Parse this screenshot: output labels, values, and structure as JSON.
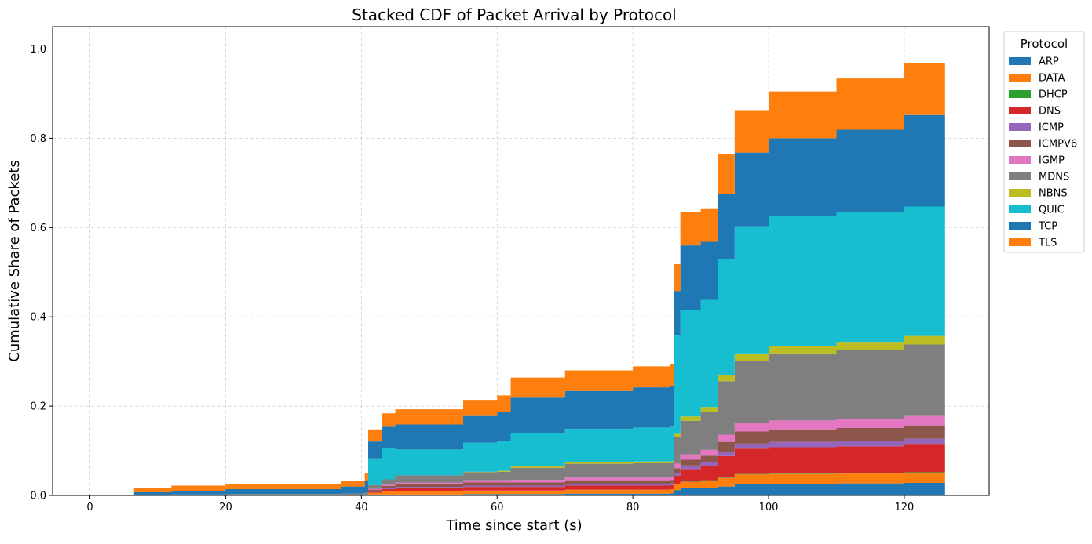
{
  "chart_data": {
    "type": "area",
    "stacked": true,
    "title": "Stacked CDF of Packet Arrival by Protocol",
    "xlabel": "Time since start (s)",
    "ylabel": "Cumulative Share of Packets",
    "xlim": [
      -5.5,
      132.5
    ],
    "ylim": [
      0.0,
      1.05
    ],
    "xticks": [
      0,
      20,
      40,
      60,
      80,
      100,
      120
    ],
    "yticks": [
      0.0,
      0.2,
      0.4,
      0.6,
      0.8,
      1.0
    ],
    "xtick_labels": [
      "0",
      "20",
      "40",
      "60",
      "80",
      "100",
      "120"
    ],
    "ytick_labels": [
      "0.0",
      "0.2",
      "0.4",
      "0.6",
      "0.8",
      "1.0"
    ],
    "grid": true,
    "legend": {
      "title": "Protocol",
      "placement": "outside-top-right"
    },
    "x": [
      0,
      6.5,
      12,
      20,
      37,
      40.5,
      41,
      43,
      45,
      55,
      60,
      62,
      70,
      80,
      85.5,
      86,
      87,
      90,
      92.5,
      95,
      100,
      110,
      120,
      126
    ],
    "series": [
      {
        "name": "ARP",
        "color": "#1f77b4",
        "values": [
          0,
          0,
          0,
          0,
          0,
          0.001,
          0.002,
          0.002,
          0.002,
          0.003,
          0.003,
          0.003,
          0.004,
          0.004,
          0.005,
          0.012,
          0.016,
          0.017,
          0.02,
          0.025,
          0.026,
          0.027,
          0.028,
          0.029
        ]
      },
      {
        "name": "DATA",
        "color": "#ff7f0e",
        "values": [
          0,
          0,
          0,
          0,
          0,
          0.001,
          0.004,
          0.007,
          0.007,
          0.008,
          0.008,
          0.008,
          0.009,
          0.009,
          0.009,
          0.013,
          0.014,
          0.016,
          0.019,
          0.022,
          0.022,
          0.022,
          0.022,
          0.023
        ]
      },
      {
        "name": "DHCP",
        "color": "#2ca02c",
        "values": [
          0,
          0,
          0,
          0,
          0,
          0,
          0,
          0,
          0,
          0,
          0,
          0,
          0,
          0,
          0,
          0.001,
          0.001,
          0.001,
          0.001,
          0.001,
          0.001,
          0.001,
          0.002,
          0.002
        ]
      },
      {
        "name": "DNS",
        "color": "#d62728",
        "values": [
          0,
          0,
          0,
          0,
          0,
          0,
          0.002,
          0.005,
          0.007,
          0.008,
          0.008,
          0.008,
          0.009,
          0.009,
          0.009,
          0.018,
          0.028,
          0.031,
          0.048,
          0.057,
          0.059,
          0.06,
          0.062,
          0.063
        ]
      },
      {
        "name": "ICMP",
        "color": "#9467bd",
        "values": [
          0,
          0,
          0,
          0,
          0,
          0,
          0.002,
          0.003,
          0.003,
          0.003,
          0.003,
          0.003,
          0.004,
          0.004,
          0.004,
          0.007,
          0.008,
          0.009,
          0.01,
          0.011,
          0.012,
          0.012,
          0.013,
          0.013
        ]
      },
      {
        "name": "ICMPV6",
        "color": "#8c564b",
        "values": [
          0,
          0,
          0,
          0,
          0,
          0,
          0.003,
          0.004,
          0.006,
          0.007,
          0.007,
          0.007,
          0.008,
          0.008,
          0.008,
          0.01,
          0.013,
          0.015,
          0.022,
          0.027,
          0.028,
          0.029,
          0.03,
          0.031
        ]
      },
      {
        "name": "IGMP",
        "color": "#e377c2",
        "values": [
          0,
          0,
          0,
          0,
          0,
          0,
          0.002,
          0.003,
          0.004,
          0.005,
          0.005,
          0.006,
          0.006,
          0.006,
          0.006,
          0.01,
          0.012,
          0.013,
          0.016,
          0.019,
          0.02,
          0.02,
          0.021,
          0.021
        ]
      },
      {
        "name": "MDNS",
        "color": "#7f7f7f",
        "values": [
          0,
          0.001,
          0.002,
          0.003,
          0.004,
          0.005,
          0.008,
          0.012,
          0.016,
          0.018,
          0.019,
          0.027,
          0.031,
          0.032,
          0.032,
          0.06,
          0.075,
          0.085,
          0.12,
          0.14,
          0.15,
          0.155,
          0.16,
          0.165
        ]
      },
      {
        "name": "NBNS",
        "color": "#bcbd22",
        "values": [
          0,
          0,
          0,
          0,
          0,
          0,
          0,
          0,
          0,
          0.001,
          0.002,
          0.003,
          0.003,
          0.004,
          0.004,
          0.007,
          0.01,
          0.011,
          0.014,
          0.016,
          0.017,
          0.018,
          0.019,
          0.02
        ]
      },
      {
        "name": "QUIC",
        "color": "#17becf",
        "values": [
          0,
          0,
          0,
          0,
          0,
          0,
          0.06,
          0.07,
          0.058,
          0.065,
          0.067,
          0.074,
          0.075,
          0.076,
          0.077,
          0.22,
          0.238,
          0.24,
          0.26,
          0.285,
          0.29,
          0.29,
          0.29,
          0.29
        ]
      },
      {
        "name": "TCP",
        "color": "#1f77b4",
        "values": [
          0,
          0.006,
          0.008,
          0.011,
          0.016,
          0.026,
          0.038,
          0.048,
          0.056,
          0.06,
          0.065,
          0.08,
          0.085,
          0.09,
          0.092,
          0.1,
          0.145,
          0.13,
          0.145,
          0.165,
          0.175,
          0.185,
          0.205,
          0.215
        ]
      },
      {
        "name": "TLS",
        "color": "#ff7f0e",
        "values": [
          0,
          0.01,
          0.012,
          0.012,
          0.012,
          0.018,
          0.027,
          0.03,
          0.034,
          0.036,
          0.037,
          0.045,
          0.046,
          0.047,
          0.048,
          0.06,
          0.074,
          0.075,
          0.09,
          0.095,
          0.105,
          0.115,
          0.117,
          0.125
        ]
      }
    ]
  }
}
